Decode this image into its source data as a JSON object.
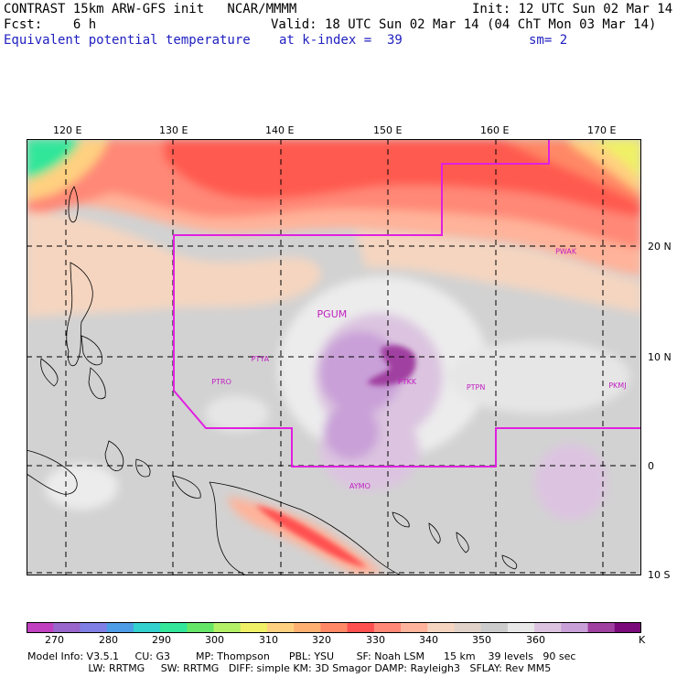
{
  "header": {
    "line1_left": "CONTRAST 15km ARW-GFS init   NCAR/MMMM",
    "line1_right": "Init: 12 UTC Sun 02 Mar 14",
    "line2_left": "Fcst:    6 h",
    "line2_right": "Valid: 18 UTC Sun 02 Mar 14 (04 ChT Mon 03 Mar 14)",
    "line3_left": "Equivalent potential temperature",
    "line3_mid": "at k-index =  39",
    "line3_right": "sm= 2"
  },
  "map": {
    "lon_labels": [
      "120 E",
      "130 E",
      "140 E",
      "150 E",
      "160 E",
      "170 E"
    ],
    "lat_labels": [
      "20 N",
      "10 N",
      "0",
      "10 S"
    ],
    "stations": [
      {
        "id": "PGUM",
        "label": "PGUM",
        "lon": 144.8,
        "lat": 13.5,
        "size": 11
      },
      {
        "id": "PTYA",
        "label": "PTYA",
        "lon": 138.1,
        "lat": 9.5,
        "size": 8
      },
      {
        "id": "PTRO",
        "label": "PTRO",
        "lon": 134.5,
        "lat": 7.4,
        "size": 8
      },
      {
        "id": "PTKK",
        "label": "PTKK",
        "lon": 151.8,
        "lat": 7.4,
        "size": 8
      },
      {
        "id": "PTPN",
        "label": "PTPN",
        "lon": 158.2,
        "lat": 6.9,
        "size": 8
      },
      {
        "id": "PKMJ",
        "label": "PKMJ",
        "lon": 171.4,
        "lat": 7.1,
        "size": 8
      },
      {
        "id": "PWAK",
        "label": "PWAK",
        "lon": 166.6,
        "lat": 19.3,
        "size": 8
      },
      {
        "id": "AYMO",
        "label": "AYMO",
        "lon": 147.4,
        "lat": -2.1,
        "size": 8
      }
    ],
    "colors": {
      "boundary": "#e020e0",
      "station": "#c020c0",
      "grid": "#000000"
    }
  },
  "colorbar": {
    "labels": [
      "270",
      "280",
      "290",
      "300",
      "310",
      "320",
      "330",
      "340",
      "350",
      "360",
      "K"
    ],
    "colors": [
      "#c040c0",
      "#9966cc",
      "#7f7fe6",
      "#4c9ce6",
      "#33d0d0",
      "#33e699",
      "#66e666",
      "#b3f066",
      "#f0f066",
      "#ffd080",
      "#ffb070",
      "#ff8866",
      "#ff5050",
      "#ff8877",
      "#ffb39a",
      "#f5d5c0",
      "#e0d2c8",
      "#cccccc",
      "#e8e8e8",
      "#dcc4e0",
      "#c9a0d8",
      "#a040a0",
      "#7a0a7a"
    ]
  },
  "footer": {
    "line1": "Model Info: V3.5.1     CU: G3        MP: Thompson      PBL: YSU       SF: Noah LSM      15 km    39 levels   90 sec",
    "line2": "                   LW: RRTMG     SW: RRTMG   DIFF: simple KM: 3D Smagor DAMP: Rayleigh3   SFLAY: Rev MM5"
  }
}
